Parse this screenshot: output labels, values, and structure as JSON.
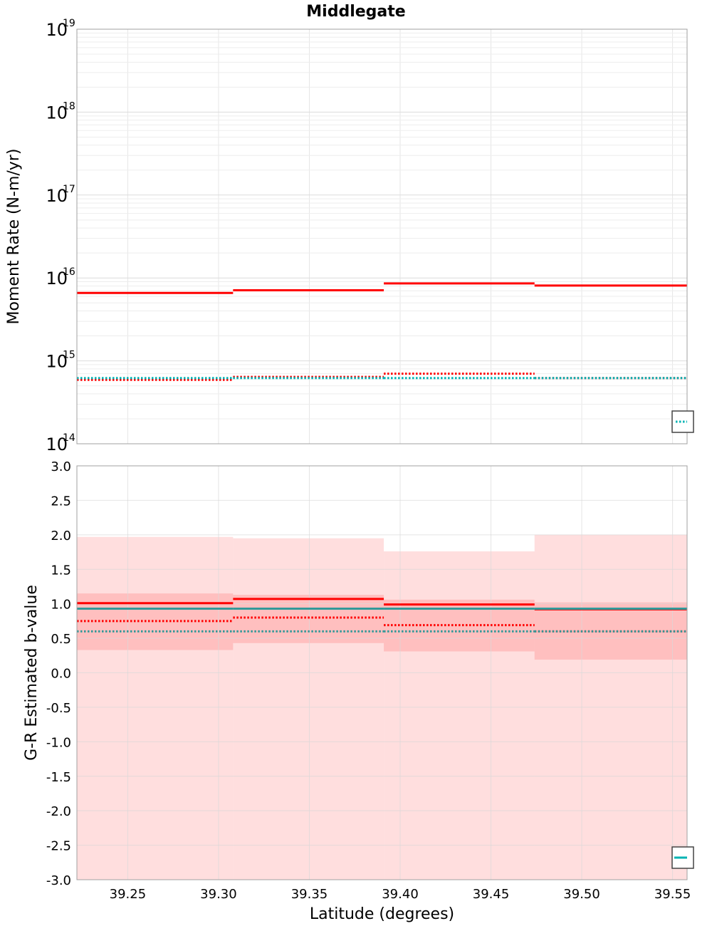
{
  "chart_data": [
    {
      "type": "line",
      "panel": "top",
      "title": "Middlegate",
      "ylabel": "Moment Rate (N-m/yr)",
      "xlabel": "",
      "yscale": "log",
      "xlim": [
        39.222,
        39.558
      ],
      "ylim": [
        100000000000000.0,
        1e+19
      ],
      "yticks": [
        {
          "base": "10",
          "exp": "14",
          "value": 100000000000000.0
        },
        {
          "base": "10",
          "exp": "15",
          "value": 1000000000000000.0
        },
        {
          "base": "10",
          "exp": "16",
          "value": 1e+16
        },
        {
          "base": "10",
          "exp": "17",
          "value": 1e+17
        },
        {
          "base": "10",
          "exp": "18",
          "value": 1e+18
        },
        {
          "base": "10",
          "exp": "19",
          "value": 1e+19
        }
      ],
      "bins": [
        [
          39.222,
          39.308
        ],
        [
          39.308,
          39.391
        ],
        [
          39.391,
          39.474
        ],
        [
          39.474,
          39.558
        ]
      ],
      "series": [
        {
          "name": "red-solid",
          "color": "#ff0000",
          "style": "solid",
          "values": [
            6600000000000000.0,
            7100000000000000.0,
            8600000000000000.0,
            8100000000000000.0
          ]
        },
        {
          "name": "red-dotted",
          "color": "#ff0000",
          "style": "dotted",
          "values": [
            590000000000000.0,
            640000000000000.0,
            700000000000000.0,
            620000000000000.0
          ]
        },
        {
          "name": "cyan-dotted",
          "color": "#00b3b3",
          "style": "dotted",
          "values": [
            620000000000000.0,
            620000000000000.0,
            620000000000000.0,
            620000000000000.0
          ]
        }
      ],
      "grid": true,
      "legend": "bottom-right"
    },
    {
      "type": "line",
      "panel": "bottom",
      "title": "",
      "ylabel": "G-R Estimated b-value",
      "xlabel": "Latitude (degrees)",
      "xlim": [
        39.222,
        39.558
      ],
      "ylim": [
        -3.0,
        3.0
      ],
      "xticks": [
        "39.25",
        "39.30",
        "39.35",
        "39.40",
        "39.45",
        "39.50",
        "39.55"
      ],
      "xtick_values": [
        39.25,
        39.3,
        39.35,
        39.4,
        39.45,
        39.5,
        39.55
      ],
      "yticks": [
        "-3.0",
        "-2.5",
        "-2.0",
        "-1.5",
        "-1.0",
        "-0.5",
        "0.0",
        "0.5",
        "1.0",
        "1.5",
        "2.0",
        "2.5",
        "3.0"
      ],
      "ytick_values": [
        -3.0,
        -2.5,
        -2.0,
        -1.5,
        -1.0,
        -0.5,
        0.0,
        0.5,
        1.0,
        1.5,
        2.0,
        2.5,
        3.0
      ],
      "bins": [
        [
          39.222,
          39.308
        ],
        [
          39.308,
          39.391
        ],
        [
          39.391,
          39.474
        ],
        [
          39.474,
          39.558
        ]
      ],
      "bands": [
        {
          "name": "outer-band",
          "color": "#ff9999",
          "opacity": 0.32,
          "low": [
            -3.0,
            -3.0,
            -3.0,
            -3.0
          ],
          "high": [
            1.97,
            1.95,
            1.76,
            2.0
          ]
        },
        {
          "name": "inner-band",
          "color": "#ff9999",
          "opacity": 0.45,
          "low": [
            0.33,
            0.43,
            0.31,
            0.19
          ],
          "high": [
            1.15,
            1.13,
            1.06,
            1.02
          ]
        }
      ],
      "series": [
        {
          "name": "red-solid",
          "color": "#ff0000",
          "style": "solid",
          "values": [
            1.01,
            1.07,
            0.99,
            0.92
          ]
        },
        {
          "name": "teal-solid",
          "color": "#339999",
          "style": "solid",
          "values": [
            0.93,
            0.93,
            0.93,
            0.93
          ]
        },
        {
          "name": "red-dotted",
          "color": "#ff0000",
          "style": "dotted",
          "values": [
            0.75,
            0.8,
            0.69,
            0.6
          ]
        },
        {
          "name": "teal-dotted",
          "color": "#339999",
          "style": "dotted",
          "values": [
            0.6,
            0.6,
            0.6,
            0.6
          ]
        }
      ],
      "grid": true,
      "legend": "bottom-right"
    }
  ]
}
